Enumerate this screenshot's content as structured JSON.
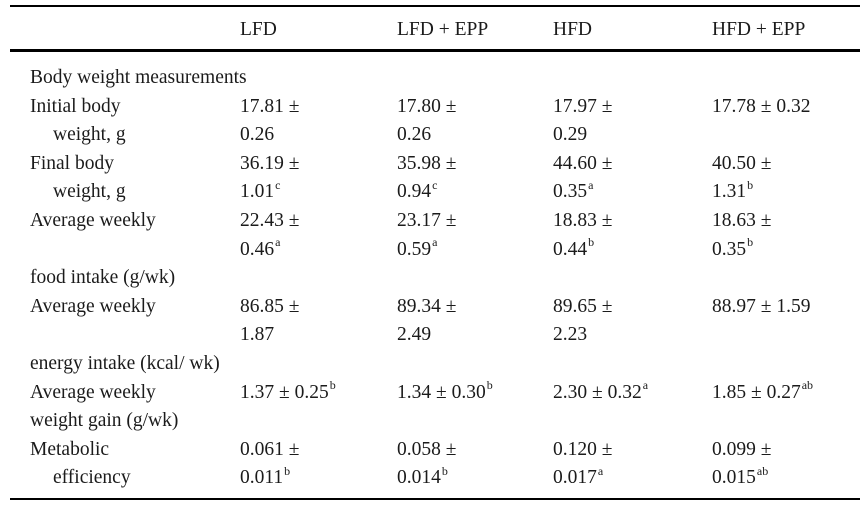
{
  "table": {
    "columns": [
      "",
      "LFD",
      "LFD + EPP",
      "HFD",
      "HFD + EPP"
    ],
    "lines": [
      {
        "label": "Body weight measurements"
      },
      {
        "label": "Initial body",
        "v1": "17.81 ±",
        "v2": "17.80 ±",
        "v3": "17.97 ±",
        "v4": "17.78 ± 0.32"
      },
      {
        "label": "weight, g",
        "v1": "0.26",
        "v2": "0.26",
        "v3": "0.29"
      },
      {
        "label": "Final body",
        "v1": "36.19 ±",
        "v2": "35.98 ±",
        "v3": "44.60 ±",
        "v4": "40.50 ±"
      },
      {
        "label": "weight, g",
        "v1": "1.01",
        "s1": "c",
        "v2": "0.94",
        "s2": "c",
        "v3": "0.35",
        "s3": "a",
        "v4": "1.31",
        "s4": "b"
      },
      {
        "label": "Average weekly",
        "v1": "22.43 ±",
        "v2": "23.17 ±",
        "v3": "18.83 ±",
        "v4": "18.63 ±"
      },
      {
        "v1": "0.46",
        "s1": "a",
        "v2": "0.59",
        "s2": "a",
        "v3": "0.44",
        "s3": "b",
        "v4": "0.35",
        "s4": "b"
      },
      {
        "label": "food intake (g/wk)"
      },
      {
        "label": "Average weekly",
        "v1": "86.85 ±",
        "v2": "89.34 ±",
        "v3": "89.65 ±",
        "v4": "88.97 ± 1.59"
      },
      {
        "v1": "1.87",
        "v2": "2.49",
        "v3": "2.23"
      },
      {
        "label": "energy intake (kcal/ wk)"
      },
      {
        "label": "Average weekly",
        "v1": "1.37 ± 0.25",
        "s1": "b",
        "v2": "1.34 ± 0.30",
        "s2": "b",
        "v3": "2.30 ± 0.32",
        "s3": "a",
        "v4": "1.85 ± 0.27",
        "s4": "ab"
      },
      {
        "label": "weight gain (g/wk)"
      },
      {
        "label": "Metabolic",
        "v1": "0.061 ±",
        "v2": "0.058 ±",
        "v3": "0.120 ±",
        "v4": "0.099 ±"
      },
      {
        "label": "efficiency",
        "v1": "0.011",
        "s1": "b",
        "v2": "0.014",
        "s2": "b",
        "v3": "0.017",
        "s3": "a",
        "v4": "0.015",
        "s4": "ab"
      }
    ]
  }
}
